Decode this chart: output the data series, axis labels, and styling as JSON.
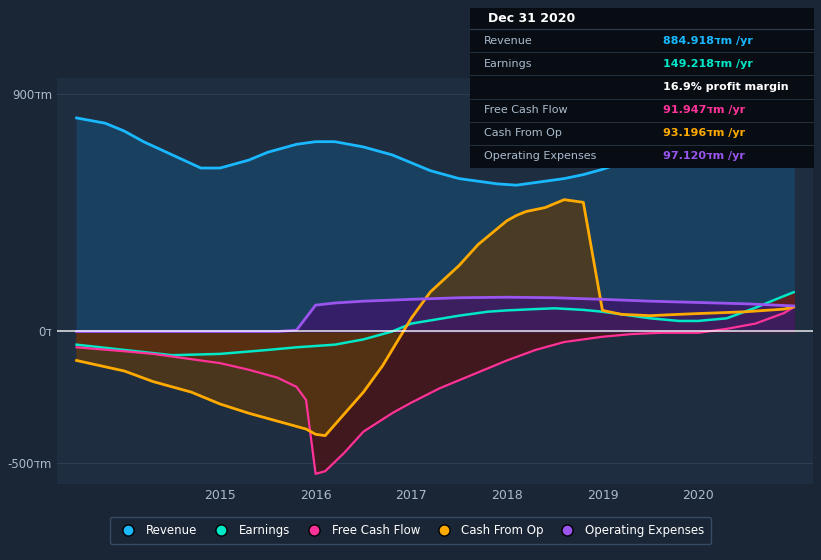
{
  "bg_color": "#1a2535",
  "plot_bg_color": "#1e2d40",
  "ylim": [
    -580,
    960
  ],
  "colors": {
    "revenue": "#1ab8ff",
    "revenue_fill": "#1a4060",
    "earnings": "#00e8c8",
    "earnings_fill": "#6b1818",
    "free_cash_flow": "#ff3399",
    "free_cash_flow_fill": "#501010",
    "cash_from_op": "#ffaa00",
    "cash_from_op_fill": "#5a3a10",
    "operating_expenses": "#9955ee",
    "operating_expenses_fill": "#3a1a6a"
  },
  "revenue_x": [
    2013.5,
    2013.8,
    2014.0,
    2014.2,
    2014.5,
    2014.8,
    2015.0,
    2015.3,
    2015.5,
    2015.8,
    2016.0,
    2016.2,
    2016.5,
    2016.8,
    2017.0,
    2017.2,
    2017.5,
    2017.7,
    2017.9,
    2018.1,
    2018.3,
    2018.6,
    2018.8,
    2019.0,
    2019.2,
    2019.5,
    2019.8,
    2020.0,
    2020.2,
    2020.5,
    2020.8,
    2021.0
  ],
  "revenue_y": [
    810,
    790,
    760,
    720,
    670,
    620,
    620,
    650,
    680,
    710,
    720,
    720,
    700,
    670,
    640,
    610,
    580,
    570,
    560,
    555,
    565,
    580,
    595,
    615,
    640,
    665,
    690,
    720,
    750,
    790,
    850,
    885
  ],
  "earnings_x": [
    2013.5,
    2014.0,
    2014.5,
    2015.0,
    2015.5,
    2015.8,
    2016.0,
    2016.2,
    2016.5,
    2016.8,
    2017.0,
    2017.5,
    2017.8,
    2018.0,
    2018.3,
    2018.5,
    2018.8,
    2019.0,
    2019.3,
    2019.5,
    2019.8,
    2020.0,
    2020.3,
    2020.6,
    2020.8,
    2021.0
  ],
  "earnings_y": [
    -50,
    -70,
    -90,
    -85,
    -70,
    -60,
    -55,
    -50,
    -30,
    0,
    30,
    60,
    75,
    80,
    85,
    88,
    82,
    75,
    60,
    50,
    40,
    40,
    50,
    90,
    120,
    149
  ],
  "fcf_x": [
    2013.5,
    2014.0,
    2014.3,
    2014.6,
    2015.0,
    2015.3,
    2015.6,
    2015.8,
    2015.9,
    2016.0,
    2016.1,
    2016.3,
    2016.5,
    2016.8,
    2017.0,
    2017.3,
    2017.6,
    2018.0,
    2018.3,
    2018.6,
    2019.0,
    2019.3,
    2019.6,
    2020.0,
    2020.3,
    2020.6,
    2020.9,
    2021.0
  ],
  "fcf_y": [
    -60,
    -75,
    -85,
    -100,
    -120,
    -145,
    -175,
    -210,
    -260,
    -540,
    -530,
    -460,
    -380,
    -310,
    -270,
    -215,
    -170,
    -110,
    -70,
    -40,
    -20,
    -10,
    -5,
    -5,
    10,
    30,
    70,
    92
  ],
  "cashop_x": [
    2013.5,
    2014.0,
    2014.3,
    2014.7,
    2015.0,
    2015.3,
    2015.6,
    2015.9,
    2016.0,
    2016.1,
    2016.5,
    2016.7,
    2017.0,
    2017.2,
    2017.5,
    2017.7,
    2017.9,
    2018.0,
    2018.1,
    2018.2,
    2018.4,
    2018.6,
    2018.8,
    2019.0,
    2019.2,
    2019.5,
    2019.8,
    2020.0,
    2020.3,
    2020.5,
    2020.7,
    2020.9,
    2021.0
  ],
  "cashop_y": [
    -110,
    -150,
    -190,
    -230,
    -275,
    -310,
    -340,
    -370,
    -390,
    -395,
    -230,
    -130,
    50,
    150,
    250,
    330,
    390,
    420,
    440,
    455,
    470,
    500,
    490,
    80,
    65,
    60,
    65,
    68,
    72,
    75,
    80,
    85,
    93
  ],
  "opex_x": [
    2013.5,
    2015.4,
    2015.6,
    2015.8,
    2016.0,
    2016.2,
    2016.5,
    2017.0,
    2017.5,
    2018.0,
    2018.5,
    2019.0,
    2019.5,
    2020.0,
    2020.5,
    2021.0
  ],
  "opex_y": [
    0,
    0,
    0,
    5,
    100,
    108,
    115,
    122,
    128,
    130,
    128,
    122,
    115,
    110,
    105,
    97
  ],
  "ytick_pos": [
    -500,
    0,
    900
  ],
  "ytick_labels": [
    "-500דm",
    "0ד",
    "900דm"
  ],
  "xtick_pos": [
    2015,
    2016,
    2017,
    2018,
    2019,
    2020
  ],
  "xtick_labels": [
    "2015",
    "2016",
    "2017",
    "2018",
    "2019",
    "2020"
  ],
  "table_title": "Dec 31 2020",
  "table_rows": [
    {
      "label": "Revenue",
      "value": "884.918דm /yr",
      "lcolor": "#aabbcc",
      "vcolor": "#1ab8ff"
    },
    {
      "label": "Earnings",
      "value": "149.218דm /yr",
      "lcolor": "#aabbcc",
      "vcolor": "#00e8c8"
    },
    {
      "label": "",
      "value": "16.9% profit margin",
      "lcolor": "#aabbcc",
      "vcolor": "#ffffff"
    },
    {
      "label": "Free Cash Flow",
      "value": "91.947דm /yr",
      "lcolor": "#aabbcc",
      "vcolor": "#ff3399"
    },
    {
      "label": "Cash From Op",
      "value": "93.196דm /yr",
      "lcolor": "#aabbcc",
      "vcolor": "#ffaa00"
    },
    {
      "label": "Operating Expenses",
      "value": "97.120דm /yr",
      "lcolor": "#aabbcc",
      "vcolor": "#9955ee"
    }
  ],
  "legend": [
    {
      "label": "Revenue",
      "color": "#1ab8ff"
    },
    {
      "label": "Earnings",
      "color": "#00e8c8"
    },
    {
      "label": "Free Cash Flow",
      "color": "#ff3399"
    },
    {
      "label": "Cash From Op",
      "color": "#ffaa00"
    },
    {
      "label": "Operating Expenses",
      "color": "#9955ee"
    }
  ]
}
